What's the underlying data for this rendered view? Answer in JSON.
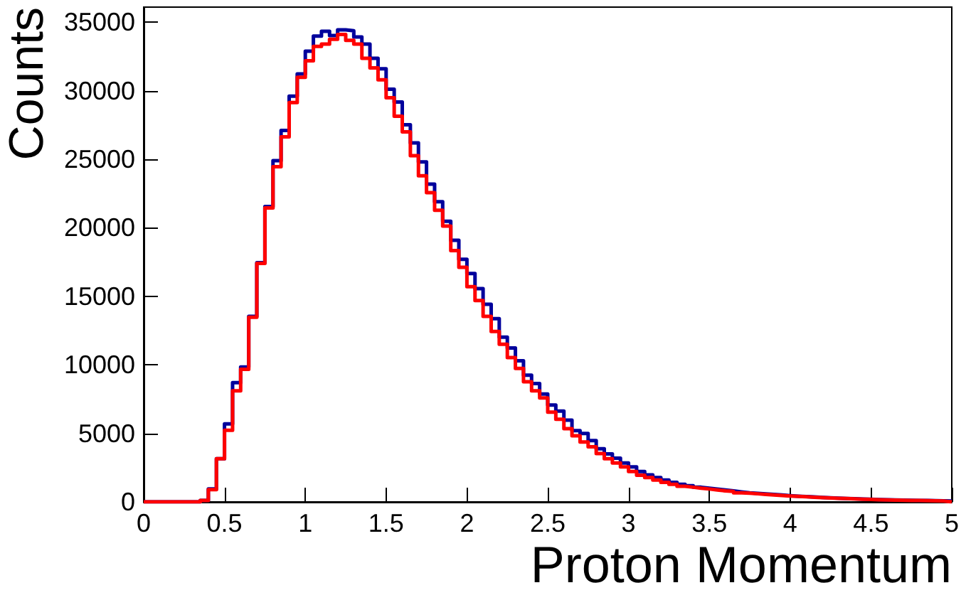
{
  "chart_data": {
    "type": "histogram",
    "xlabel": "Proton Momentum",
    "ylabel": "Counts",
    "bins": [
      0,
      0.05,
      0.1,
      0.15,
      0.2,
      0.25,
      0.3,
      0.35,
      0.4,
      0.45,
      0.5,
      0.55,
      0.6,
      0.65,
      0.7,
      0.75,
      0.8,
      0.85,
      0.9,
      0.95,
      1,
      1.05,
      1.1,
      1.15,
      1.2,
      1.25,
      1.3,
      1.35,
      1.4,
      1.45,
      1.5,
      1.55,
      1.6,
      1.65,
      1.7,
      1.75,
      1.8,
      1.85,
      1.9,
      1.95,
      2,
      2.05,
      2.1,
      2.15,
      2.2,
      2.25,
      2.3,
      2.35,
      2.4,
      2.45,
      2.5,
      2.55,
      2.6,
      2.65,
      2.7,
      2.75,
      2.8,
      2.85,
      2.9,
      2.95,
      3,
      3.05,
      3.1,
      3.15,
      3.2,
      3.25,
      3.3,
      3.35,
      3.4,
      3.45,
      3.5,
      3.55,
      3.6,
      3.65,
      3.7,
      3.75,
      3.8,
      3.85,
      3.9,
      3.95,
      4,
      4.05,
      4.1,
      4.15,
      4.2,
      4.25,
      4.3,
      4.35,
      4.4,
      4.45,
      4.5,
      4.55,
      4.6,
      4.65,
      4.7,
      4.75,
      4.8,
      4.85,
      4.9,
      4.95,
      5
    ],
    "series": [
      {
        "color": "#00009c",
        "values": [
          0,
          0,
          0,
          0,
          0,
          0,
          0,
          100,
          950,
          3150,
          5690,
          8700,
          9840,
          13540,
          17460,
          21550,
          24900,
          27100,
          29600,
          31220,
          32880,
          33990,
          34340,
          34020,
          34440,
          34370,
          33920,
          33400,
          32360,
          31600,
          30110,
          29180,
          27510,
          26190,
          24810,
          23180,
          21900,
          20480,
          19090,
          17700,
          16660,
          15560,
          14420,
          13370,
          12020,
          11230,
          10290,
          9250,
          8630,
          7870,
          7070,
          6620,
          5960,
          5200,
          4990,
          4470,
          3880,
          3500,
          3190,
          2840,
          2560,
          2220,
          1970,
          1770,
          1590,
          1420,
          1280,
          1180,
          1070,
          1000,
          940,
          870,
          800,
          730,
          660,
          620,
          580,
          540,
          500,
          460,
          420,
          390,
          360,
          330,
          300,
          270,
          250,
          230,
          210,
          190,
          170,
          150,
          140,
          130,
          120,
          110,
          100,
          90,
          80,
          70
        ]
      },
      {
        "color": "#ff0000",
        "values": [
          0,
          0,
          0,
          0,
          0,
          0,
          0,
          100,
          900,
          3150,
          5230,
          8110,
          9670,
          13470,
          17400,
          21450,
          24460,
          26640,
          29140,
          30980,
          32190,
          33230,
          33400,
          33750,
          34100,
          33680,
          33400,
          32360,
          31670,
          30800,
          29490,
          28140,
          27000,
          25260,
          23800,
          22560,
          21280,
          20130,
          18330,
          17120,
          15700,
          14690,
          13540,
          12440,
          11500,
          10530,
          9740,
          8770,
          8110,
          7590,
          6550,
          6030,
          5340,
          4820,
          4370,
          4020,
          3530,
          3150,
          2840,
          2560,
          2220,
          1940,
          1770,
          1590,
          1420,
          1280,
          1140,
          1070,
          1000,
          940,
          870,
          800,
          770,
          660,
          630,
          590,
          550,
          510,
          470,
          430,
          400,
          370,
          340,
          310,
          280,
          260,
          240,
          220,
          200,
          180,
          160,
          140,
          130,
          120,
          110,
          100,
          90,
          80,
          70,
          0
        ]
      }
    ],
    "xlim": [
      0,
      5
    ],
    "ylim": [
      0,
      36100
    ],
    "xticks": [
      0,
      0.5,
      1,
      1.5,
      2,
      2.5,
      3,
      3.5,
      4,
      4.5,
      5
    ],
    "yticks": [
      0,
      5000,
      10000,
      15000,
      20000,
      25000,
      30000,
      35000
    ]
  }
}
